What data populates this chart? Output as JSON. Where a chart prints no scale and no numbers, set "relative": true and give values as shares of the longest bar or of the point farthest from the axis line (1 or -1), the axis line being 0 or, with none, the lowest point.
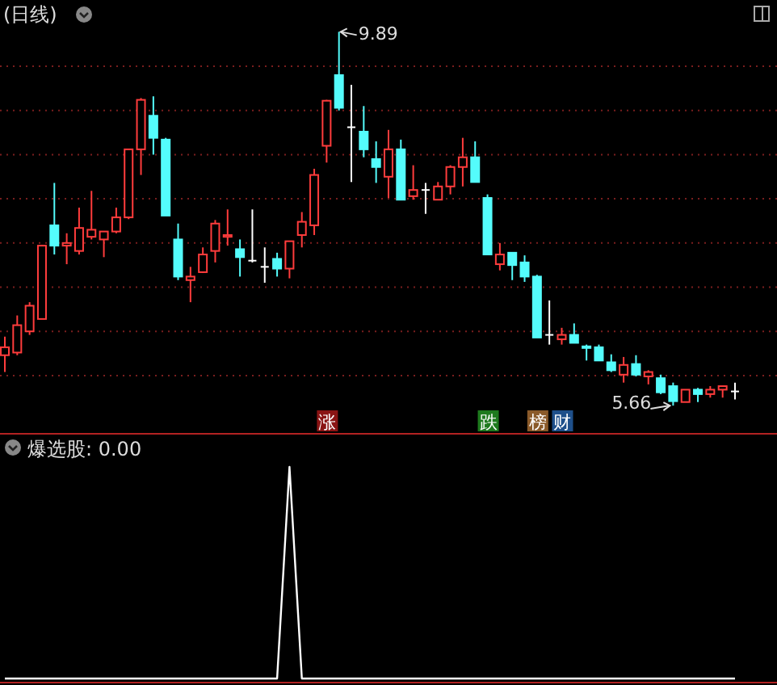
{
  "chart_data": [
    {
      "type": "candlestick",
      "title": "(日线)",
      "categories": [
        null,
        null,
        null,
        null,
        null,
        null,
        null,
        null,
        null,
        null,
        null,
        null,
        null,
        null,
        null,
        null,
        null,
        null,
        null,
        null,
        null,
        null,
        null,
        null,
        null,
        null,
        null,
        null,
        null,
        null,
        null,
        null,
        null,
        null,
        null,
        null,
        null,
        null,
        null,
        null,
        null,
        null,
        null,
        null,
        null,
        null,
        null,
        null,
        null,
        null,
        null,
        null,
        null,
        null,
        null,
        null,
        null,
        null,
        null,
        null
      ],
      "ohlc": [
        [
          6.23,
          6.44,
          6.04,
          6.32
        ],
        [
          6.26,
          6.68,
          6.23,
          6.57
        ],
        [
          6.5,
          6.83,
          6.46,
          6.79
        ],
        [
          6.64,
          7.48,
          6.64,
          7.47
        ],
        [
          7.7,
          8.18,
          7.37,
          7.47
        ],
        [
          7.47,
          7.61,
          7.26,
          7.5
        ],
        [
          7.41,
          7.9,
          7.37,
          7.67
        ],
        [
          7.57,
          8.09,
          7.54,
          7.65
        ],
        [
          7.54,
          7.63,
          7.34,
          7.63
        ],
        [
          7.63,
          7.9,
          7.61,
          7.79
        ],
        [
          7.79,
          8.56,
          7.77,
          8.56
        ],
        [
          8.56,
          9.14,
          8.27,
          9.12
        ],
        [
          8.94,
          9.16,
          8.5,
          8.69
        ],
        [
          8.67,
          8.69,
          7.81,
          7.81
        ],
        [
          7.54,
          7.72,
          7.08,
          7.12
        ],
        [
          7.08,
          7.23,
          6.83,
          7.12
        ],
        [
          7.17,
          7.45,
          7.16,
          7.37
        ],
        [
          7.41,
          7.76,
          7.28,
          7.72
        ],
        [
          7.57,
          7.88,
          7.47,
          7.59
        ],
        [
          7.43,
          7.54,
          7.12,
          7.34
        ],
        [
          7.3,
          7.88,
          7.28,
          7.3
        ],
        [
          7.23,
          7.45,
          7.05,
          7.23
        ],
        [
          7.32,
          7.39,
          7.12,
          7.21
        ],
        [
          7.21,
          7.52,
          7.1,
          7.52
        ],
        [
          7.59,
          7.85,
          7.45,
          7.74
        ],
        [
          7.7,
          8.34,
          7.59,
          8.27
        ],
        [
          8.6,
          9.12,
          8.41,
          9.11
        ],
        [
          9.4,
          9.89,
          9.0,
          9.03
        ],
        [
          8.81,
          9.29,
          8.19,
          8.81
        ],
        [
          8.76,
          9.05,
          8.47,
          8.56
        ],
        [
          8.45,
          8.65,
          8.18,
          8.36
        ],
        [
          8.25,
          8.78,
          8.01,
          8.56
        ],
        [
          8.56,
          8.67,
          7.99,
          7.99
        ],
        [
          8.03,
          8.38,
          7.99,
          8.1
        ],
        [
          8.1,
          8.18,
          7.83,
          8.1
        ],
        [
          7.99,
          8.19,
          7.99,
          8.14
        ],
        [
          8.14,
          8.38,
          8.05,
          8.36
        ],
        [
          8.36,
          8.69,
          8.14,
          8.47
        ],
        [
          8.47,
          8.65,
          8.19,
          8.19
        ],
        [
          8.01,
          8.05,
          7.37,
          7.37
        ],
        [
          7.26,
          7.5,
          7.19,
          7.37
        ],
        [
          7.39,
          7.39,
          7.08,
          7.25
        ],
        [
          7.28,
          7.36,
          7.06,
          7.12
        ],
        [
          7.12,
          7.14,
          6.43,
          6.43
        ],
        [
          6.46,
          6.85,
          6.35,
          6.46
        ],
        [
          6.41,
          6.54,
          6.35,
          6.46
        ],
        [
          6.46,
          6.59,
          6.37,
          6.37
        ],
        [
          6.33,
          6.35,
          6.17,
          6.32
        ],
        [
          6.32,
          6.35,
          6.17,
          6.17
        ],
        [
          6.15,
          6.24,
          6.04,
          6.06
        ],
        [
          6.01,
          6.21,
          5.92,
          6.12
        ],
        [
          6.13,
          6.23,
          5.99,
          6.01
        ],
        [
          5.99,
          6.06,
          5.9,
          6.04
        ],
        [
          5.97,
          6.01,
          5.79,
          5.81
        ],
        [
          5.88,
          5.92,
          5.66,
          5.71
        ],
        [
          5.7,
          5.84,
          5.7,
          5.84
        ],
        [
          5.84,
          5.86,
          5.7,
          5.79
        ],
        [
          5.79,
          5.88,
          5.75,
          5.84
        ],
        [
          5.84,
          5.88,
          5.75,
          5.88
        ],
        [
          5.82,
          5.92,
          5.73,
          5.82
        ]
      ],
      "colors": [
        "#ff3c3c",
        "#ff3c3c",
        "#ff3c3c",
        "#ff3c3c",
        "#54fcfc",
        "#ff3c3c",
        "#ff3c3c",
        "#ff3c3c",
        "#ff3c3c",
        "#ff3c3c",
        "#ff3c3c",
        "#ff3c3c",
        "#54fcfc",
        "#54fcfc",
        "#54fcfc",
        "#ff3c3c",
        "#ff3c3c",
        "#ff3c3c",
        "#ff3c3c",
        "#54fcfc",
        "#ffffff",
        "#ffffff",
        "#54fcfc",
        "#ff3c3c",
        "#ff3c3c",
        "#ff3c3c",
        "#ff3c3c",
        "#54fcfc",
        "#ffffff",
        "#54fcfc",
        "#54fcfc",
        "#ff3c3c",
        "#54fcfc",
        "#ff3c3c",
        "#ffffff",
        "#ff3c3c",
        "#ff3c3c",
        "#ff3c3c",
        "#54fcfc",
        "#54fcfc",
        "#ff3c3c",
        "#54fcfc",
        "#54fcfc",
        "#54fcfc",
        "#ffffff",
        "#ff3c3c",
        "#54fcfc",
        "#54fcfc",
        "#54fcfc",
        "#54fcfc",
        "#ff3c3c",
        "#54fcfc",
        "#ff3c3c",
        "#54fcfc",
        "#54fcfc",
        "#ff3c3c",
        "#54fcfc",
        "#ff3c3c",
        "#ff3c3c",
        "#ffffff"
      ],
      "ylim": [
        5.35,
        10.25
      ],
      "yticks": [
        {
          "value": 6.0,
          "label": null
        },
        {
          "value": 6.5,
          "label": null
        },
        {
          "value": 7.0,
          "label": null
        },
        {
          "value": 7.5,
          "label": null
        },
        {
          "value": 8.0,
          "label": null
        },
        {
          "value": 8.5,
          "label": null
        },
        {
          "value": 9.0,
          "label": null
        },
        {
          "value": 9.5,
          "label": null
        }
      ],
      "grid": "y",
      "annotations": [
        "9.89",
        "5.66",
        "涨",
        "跌",
        "榜",
        "财"
      ]
    },
    {
      "type": "line",
      "title": "爆选股: 0.00",
      "relative": true,
      "categories": [
        null,
        null,
        null,
        null,
        null,
        null,
        null,
        null,
        null,
        null,
        null,
        null,
        null,
        null,
        null,
        null,
        null,
        null,
        null,
        null,
        null,
        null,
        null,
        null,
        null,
        null,
        null,
        null,
        null,
        null,
        null,
        null,
        null,
        null,
        null,
        null,
        null,
        null,
        null,
        null,
        null,
        null,
        null,
        null,
        null,
        null,
        null,
        null,
        null,
        null,
        null,
        null,
        null,
        null,
        null,
        null,
        null,
        null,
        null,
        null
      ],
      "series": [
        {
          "color": "#ffffff",
          "values": [
            0,
            0,
            0,
            0,
            0,
            0,
            0,
            0,
            0,
            0,
            0,
            0,
            0,
            0,
            0,
            0,
            0,
            0,
            0,
            0,
            0,
            0,
            0,
            1,
            0,
            0,
            0,
            0,
            0,
            0,
            0,
            0,
            0,
            0,
            0,
            0,
            0,
            0,
            0,
            0,
            0,
            0,
            0,
            0,
            0,
            0,
            0,
            0,
            0,
            0,
            0,
            0,
            0,
            0,
            0,
            0,
            0,
            0,
            0,
            0
          ]
        }
      ]
    }
  ]
}
